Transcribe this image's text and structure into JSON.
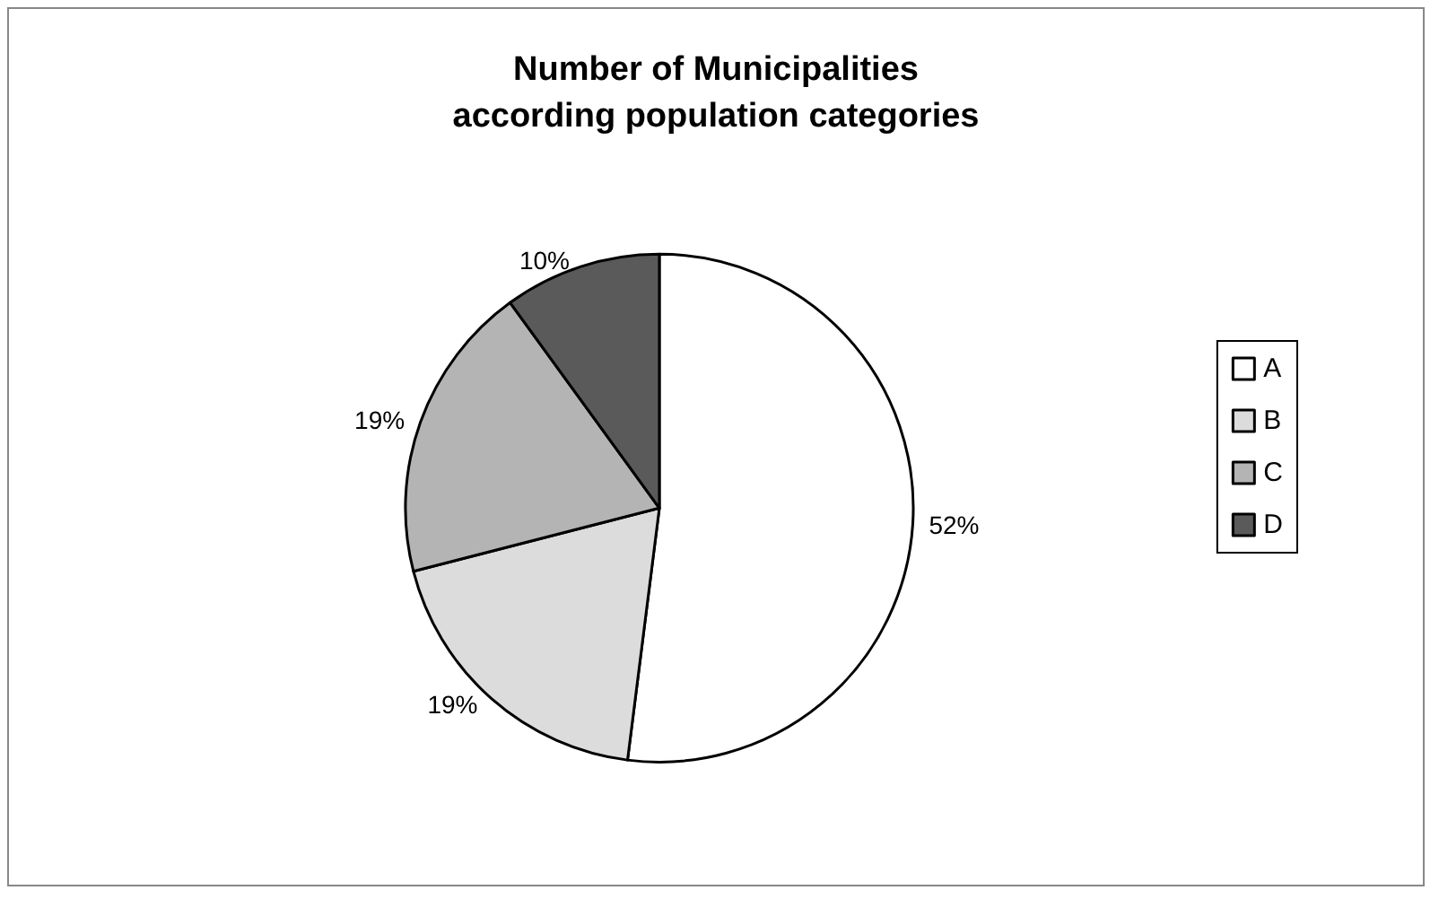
{
  "chart_data": {
    "type": "pie",
    "title": "Number of Municipalities\naccording population categories",
    "categories": [
      "A",
      "B",
      "C",
      "D"
    ],
    "values": [
      52,
      19,
      19,
      10
    ],
    "value_labels": [
      "52%",
      "19%",
      "19%",
      "10%"
    ],
    "colors": [
      "#ffffff",
      "#dcdcdc",
      "#b4b4b4",
      "#5a5a5a"
    ],
    "legend": "right"
  }
}
